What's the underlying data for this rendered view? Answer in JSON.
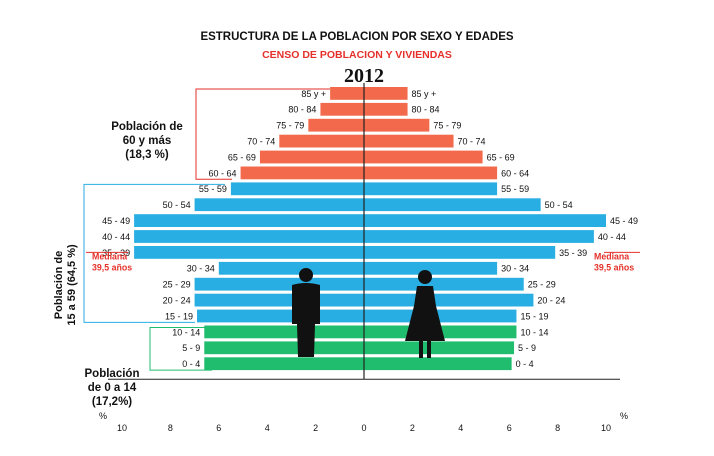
{
  "chart_data": {
    "type": "bar",
    "title": "ESTRUCTURA DE LA POBLACION POR SEXO Y EDADES",
    "subtitle": "CENSO DE POBLACION Y VIVIENDAS",
    "year": "2012",
    "orientation": "horizontal-pyramid",
    "axis_unit_left": "%",
    "axis_unit_right": "%",
    "xlim": [
      0,
      10
    ],
    "x_ticks": [
      "10",
      "8",
      "6",
      "4",
      "2",
      "0",
      "2",
      "4",
      "6",
      "8",
      "10"
    ],
    "categories": [
      "85 y +",
      "80 - 84",
      "75 - 79",
      "70 - 74",
      "65 - 69",
      "60 - 64",
      "55 - 59",
      "50 - 54",
      "45 - 49",
      "40 - 44",
      "35 - 39",
      "30 - 34",
      "25 - 29",
      "20 - 24",
      "15 - 19",
      "10 - 14",
      "5 - 9",
      "0 - 4"
    ],
    "series": [
      {
        "values": [
          1.4,
          1.8,
          2.3,
          3.5,
          4.3,
          5.1,
          5.5,
          7.0,
          9.5,
          9.5,
          9.5,
          6.0,
          7.0,
          7.0,
          6.9,
          6.6,
          6.6,
          6.6
        ]
      },
      {
        "values": [
          1.8,
          1.8,
          2.7,
          3.7,
          4.9,
          5.5,
          5.5,
          7.3,
          10.0,
          9.5,
          7.9,
          5.5,
          6.6,
          7.0,
          6.3,
          6.3,
          6.2,
          6.1
        ]
      }
    ],
    "group_colors": {
      "old": "#f26a4b",
      "adult": "#29aee3",
      "young": "#21bd6f"
    },
    "groups": [
      {
        "key": "old",
        "label_lines": [
          "Población de",
          "60 y más",
          "(18,3 %)"
        ],
        "from": 0,
        "to": 5
      },
      {
        "key": "adult",
        "label_lines": [
          "Población de",
          "15 a 59 (64,5 %)"
        ],
        "from": 6,
        "to": 14
      },
      {
        "key": "young",
        "label_lines": [
          "Población",
          "de 0 a 14",
          "(17,2%)"
        ],
        "from": 15,
        "to": 17
      }
    ],
    "median_label": [
      "Mediana",
      "39,5 años"
    ],
    "median_row": 10,
    "grid": false
  }
}
